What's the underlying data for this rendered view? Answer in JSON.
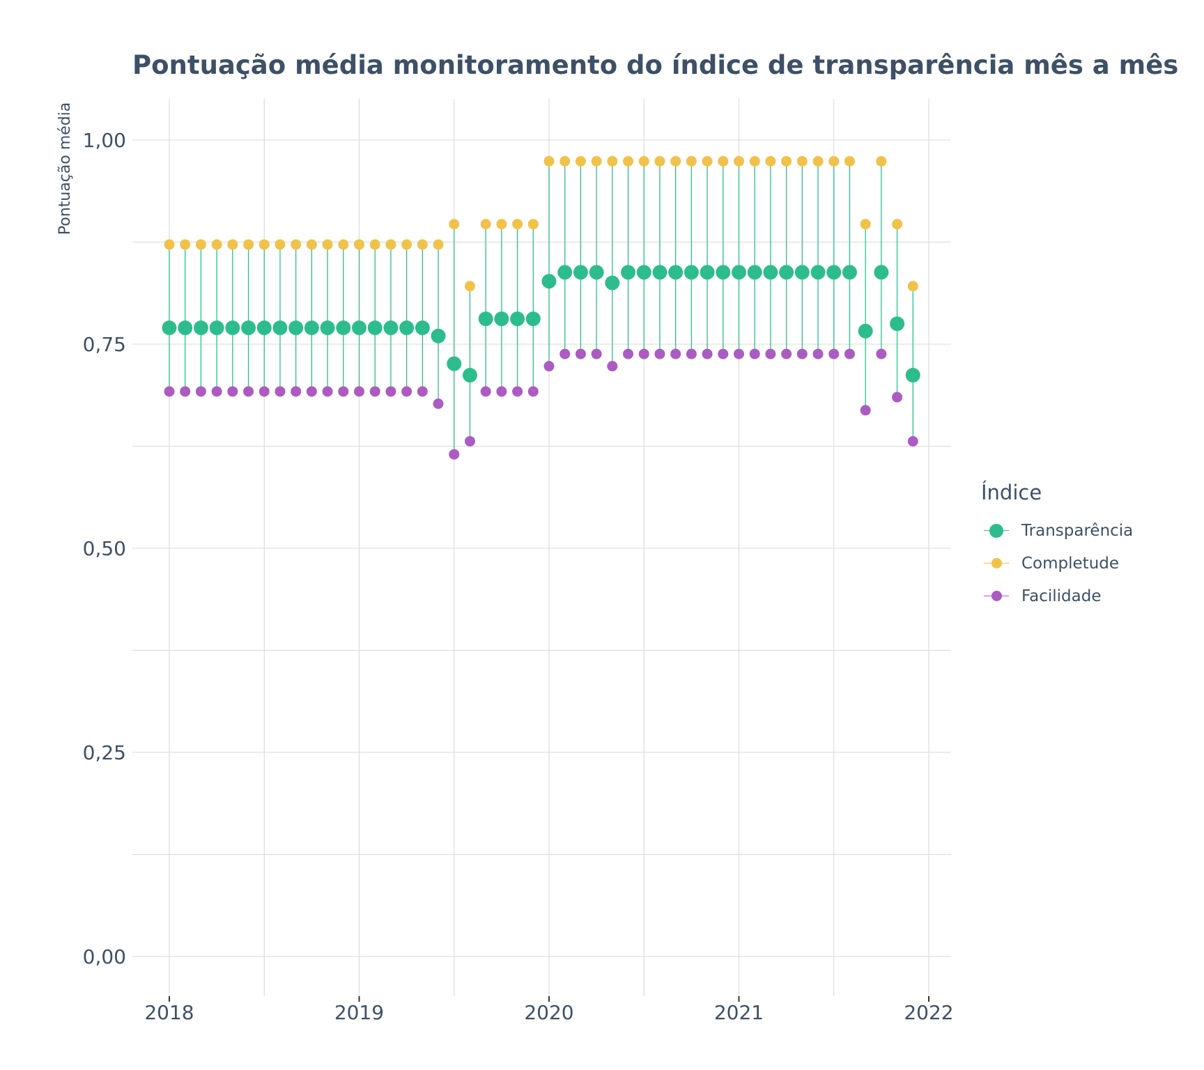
{
  "chart_data": {
    "type": "scatter",
    "title": "Pontuação média monitoramento do índice de transparência mês a mês",
    "xlabel": "",
    "ylabel": "Pontuação média",
    "x_ticks": [
      "2018",
      "2019",
      "2020",
      "2021",
      "2022"
    ],
    "y_ticks": [
      "0,00",
      "0,25",
      "0,50",
      "0,75",
      "1,00"
    ],
    "ylim": [
      -0.05,
      1.05
    ],
    "xlim": [
      "2017-10",
      "2022-02"
    ],
    "grid": true,
    "legend_title": "Índice",
    "legend_position": "right",
    "x": [
      "2018-01",
      "2018-02",
      "2018-03",
      "2018-04",
      "2018-05",
      "2018-06",
      "2018-07",
      "2018-08",
      "2018-09",
      "2018-10",
      "2018-11",
      "2018-12",
      "2019-01",
      "2019-02",
      "2019-03",
      "2019-04",
      "2019-05",
      "2019-06",
      "2019-07",
      "2019-08",
      "2019-09",
      "2019-10",
      "2019-11",
      "2019-12",
      "2020-01",
      "2020-02",
      "2020-03",
      "2020-04",
      "2020-05",
      "2020-06",
      "2020-07",
      "2020-08",
      "2020-09",
      "2020-10",
      "2020-11",
      "2020-12",
      "2021-01",
      "2021-02",
      "2021-03",
      "2021-04",
      "2021-05",
      "2021-06",
      "2021-07",
      "2021-08",
      "2021-09",
      "2021-10",
      "2021-11",
      "2021-12"
    ],
    "series": [
      {
        "name": "Transparência",
        "color": "#2dbd8c",
        "values": [
          0.77,
          0.77,
          0.77,
          0.77,
          0.77,
          0.77,
          0.77,
          0.77,
          0.77,
          0.77,
          0.77,
          0.77,
          0.77,
          0.77,
          0.77,
          0.77,
          0.77,
          0.76,
          0.726,
          0.712,
          0.781,
          0.781,
          0.781,
          0.781,
          0.827,
          0.838,
          0.838,
          0.838,
          0.825,
          0.838,
          0.838,
          0.838,
          0.838,
          0.838,
          0.838,
          0.838,
          0.838,
          0.838,
          0.838,
          0.838,
          0.838,
          0.838,
          0.838,
          0.838,
          0.766,
          0.838,
          0.775,
          0.712
        ]
      },
      {
        "name": "Completude",
        "color": "#f0c24a",
        "values": [
          0.872,
          0.872,
          0.872,
          0.872,
          0.872,
          0.872,
          0.872,
          0.872,
          0.872,
          0.872,
          0.872,
          0.872,
          0.872,
          0.872,
          0.872,
          0.872,
          0.872,
          0.872,
          0.897,
          0.821,
          0.897,
          0.897,
          0.897,
          0.897,
          0.974,
          0.974,
          0.974,
          0.974,
          0.974,
          0.974,
          0.974,
          0.974,
          0.974,
          0.974,
          0.974,
          0.974,
          0.974,
          0.974,
          0.974,
          0.974,
          0.974,
          0.974,
          0.974,
          0.974,
          0.897,
          0.974,
          0.897,
          0.821
        ]
      },
      {
        "name": "Facilidade",
        "color": "#ac5bc2",
        "values": [
          0.692,
          0.692,
          0.692,
          0.692,
          0.692,
          0.692,
          0.692,
          0.692,
          0.692,
          0.692,
          0.692,
          0.692,
          0.692,
          0.692,
          0.692,
          0.692,
          0.692,
          0.677,
          0.615,
          0.631,
          0.692,
          0.692,
          0.692,
          0.692,
          0.723,
          0.738,
          0.738,
          0.738,
          0.723,
          0.738,
          0.738,
          0.738,
          0.738,
          0.738,
          0.738,
          0.738,
          0.738,
          0.738,
          0.738,
          0.738,
          0.738,
          0.738,
          0.738,
          0.738,
          0.669,
          0.738,
          0.685,
          0.631
        ]
      }
    ]
  }
}
